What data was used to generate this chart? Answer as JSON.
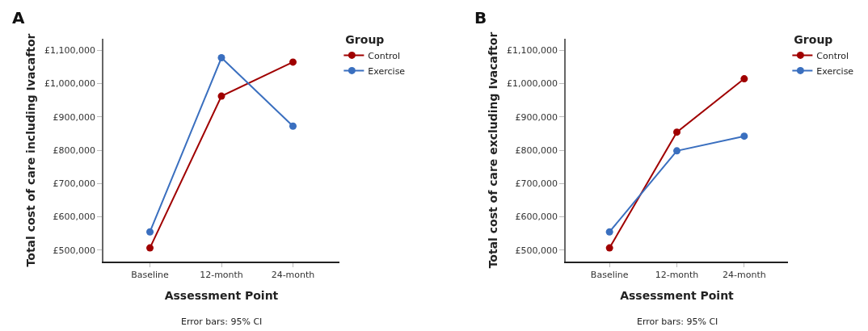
{
  "chart_data": [
    {
      "type": "line",
      "title": "A",
      "xlabel": "Assessment Point",
      "ylabel": "Total cost of care including Ivacaftor",
      "legend_title": "Group",
      "legend": "top right",
      "marker": "circle",
      "line_style": "solid",
      "categories": [
        "Baseline",
        "12-month",
        "24-month"
      ],
      "series": [
        {
          "name": "Control",
          "color": "#a00000",
          "values": [
            507000,
            962000,
            1064000
          ]
        },
        {
          "name": "Exercise",
          "color": "#3a6fbf",
          "values": [
            555000,
            1077000,
            872000
          ]
        }
      ],
      "ylim": [
        466000,
        1134000
      ],
      "yticks": [
        {
          "value": 500000,
          "label": "£500,000"
        },
        {
          "value": 600000,
          "label": "£600,000"
        },
        {
          "value": 700000,
          "label": "£700,000"
        },
        {
          "value": 800000,
          "label": "£800,000"
        },
        {
          "value": 900000,
          "label": "£900,000"
        },
        {
          "value": 1000000,
          "label": "£1,000,000"
        },
        {
          "value": 1100000,
          "label": "£1,100,000"
        }
      ],
      "annotations": [
        "Error bars: 95% CI"
      ]
    },
    {
      "type": "line",
      "title": "B",
      "xlabel": "Assessment Point",
      "ylabel": "Total cost of care excluding Ivacaftor",
      "legend_title": "Group",
      "legend": "top right",
      "marker": "circle",
      "line_style": "solid",
      "categories": [
        "Baseline",
        "12-month",
        "24-month"
      ],
      "series": [
        {
          "name": "Control",
          "color": "#a00000",
          "values": [
            507000,
            854000,
            1014000
          ]
        },
        {
          "name": "Exercise",
          "color": "#3a6fbf",
          "values": [
            555000,
            798000,
            842000
          ]
        }
      ],
      "ylim": [
        466000,
        1134000
      ],
      "yticks": [
        {
          "value": 500000,
          "label": "£500,000"
        },
        {
          "value": 600000,
          "label": "£600,000"
        },
        {
          "value": 700000,
          "label": "£700,000"
        },
        {
          "value": 800000,
          "label": "£800,000"
        },
        {
          "value": 900000,
          "label": "£900,000"
        },
        {
          "value": 1000000,
          "label": "£1,000,000"
        },
        {
          "value": 1100000,
          "label": "£1,100,000"
        }
      ],
      "annotations": [
        "Error bars: 95% CI"
      ]
    }
  ]
}
